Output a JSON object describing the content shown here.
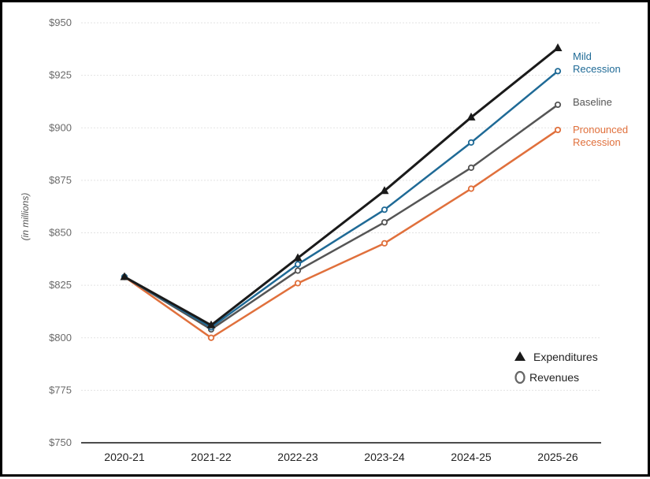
{
  "chart_data": {
    "type": "line",
    "title": "",
    "xlabel": "",
    "ylabel": "(in millions)",
    "categories": [
      "2020-21",
      "2021-22",
      "2022-23",
      "2023-24",
      "2024-25",
      "2025-26"
    ],
    "ylim": [
      750,
      950
    ],
    "yticks": [
      "$750",
      "$775",
      "$800",
      "$825",
      "$850",
      "$875",
      "$900",
      "$925",
      "$950"
    ],
    "ytick_values": [
      750,
      775,
      800,
      825,
      850,
      875,
      900,
      925,
      950
    ],
    "grid": true,
    "legend_position": "bottom-right",
    "legend": [
      {
        "label": "Expenditures",
        "marker": "filled-triangle"
      },
      {
        "label": "Revenues",
        "marker": "open-circle"
      }
    ],
    "series": [
      {
        "name": "Expenditures",
        "kind": "expenditures",
        "color": "#1a1a1a",
        "marker": "triangle",
        "label_lines": [],
        "values": [
          829,
          806,
          838,
          870,
          905,
          938
        ]
      },
      {
        "name": "Mild Recession",
        "kind": "revenues",
        "color": "#1f6a96",
        "marker": "circle",
        "label_lines": [
          "Mild",
          "Recession"
        ],
        "values": [
          829,
          805,
          835,
          861,
          893,
          927
        ]
      },
      {
        "name": "Baseline",
        "kind": "revenues",
        "color": "#555555",
        "marker": "circle",
        "label_lines": [
          "Baseline"
        ],
        "values": [
          829,
          804,
          832,
          855,
          881,
          911
        ]
      },
      {
        "name": "Pronounced Recession",
        "kind": "revenues",
        "color": "#e0703c",
        "marker": "circle",
        "label_lines": [
          "Pronounced",
          "Recession"
        ],
        "values": [
          829,
          800,
          826,
          845,
          871,
          899
        ]
      }
    ]
  }
}
